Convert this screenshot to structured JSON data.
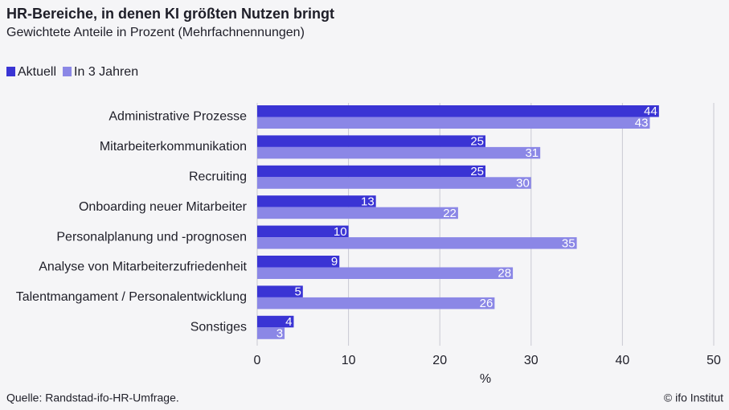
{
  "chart_data": {
    "type": "hbar",
    "title": "HR-Bereiche, in denen KI größten Nutzen bringt",
    "subtitle": "Gewichtete Anteile in Prozent (Mehrfachnennungen)",
    "categories": [
      "Administrative Prozesse",
      "Mitarbeiterkommunikation",
      "Recruiting",
      "Onboarding neuer Mitarbeiter",
      "Personalplanung und -prognosen",
      "Analyse von Mitarbeiterzufriedenheit",
      "Talentmangament / Personalentwicklung",
      "Sonstiges"
    ],
    "series": [
      {
        "name": "Aktuell",
        "color": "#3a34d4",
        "values": [
          44,
          25,
          25,
          13,
          10,
          9,
          5,
          4
        ]
      },
      {
        "name": "In 3 Jahren",
        "color": "#8b87e6",
        "values": [
          43,
          31,
          30,
          22,
          35,
          28,
          26,
          3
        ]
      }
    ],
    "xlim": [
      0,
      50
    ],
    "xticks": [
      0,
      10,
      20,
      30,
      40,
      50
    ],
    "xlabel": "%",
    "grid": true,
    "source": "Quelle: Randstad-ifo-HR-Umfrage.",
    "credit": "© ifo Institut"
  }
}
